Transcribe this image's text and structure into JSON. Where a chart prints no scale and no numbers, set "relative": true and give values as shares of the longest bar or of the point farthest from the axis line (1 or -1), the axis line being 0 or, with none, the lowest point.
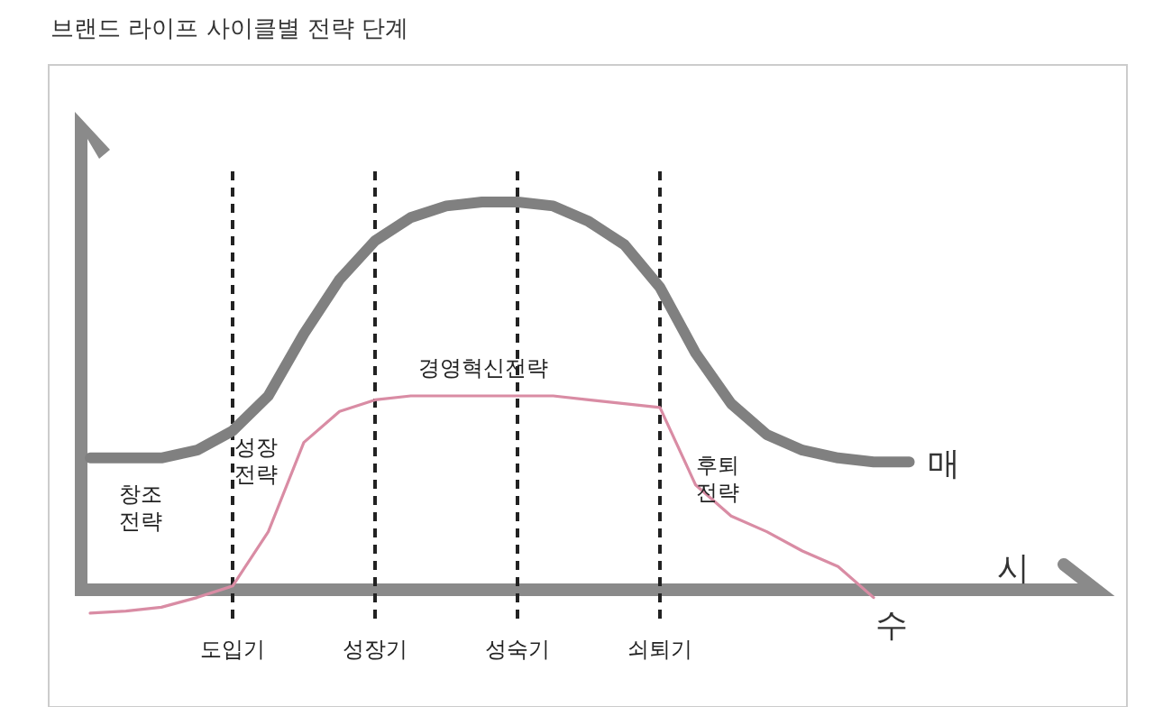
{
  "chart_data": {
    "type": "line",
    "relative": true,
    "title": "브랜드 라이프 사이클별 전략 단계",
    "xlabel": "시",
    "categories": [
      null,
      null,
      null,
      null,
      "도입기",
      null,
      null,
      null,
      "성장기",
      null,
      null,
      null,
      "성숙기",
      null,
      null,
      null,
      "쇠퇴기",
      null,
      null,
      null,
      null,
      null,
      null,
      null,
      null,
      null,
      null,
      null,
      null
    ],
    "ref_lines": [
      {
        "axis": "x",
        "value": "도입기",
        "color": "#222222",
        "line_style": "dashed"
      },
      {
        "axis": "x",
        "value": "성장기",
        "color": "#222222",
        "line_style": "dashed"
      },
      {
        "axis": "x",
        "value": "성숙기",
        "color": "#222222",
        "line_style": "dashed"
      },
      {
        "axis": "x",
        "value": "쇠퇴기",
        "color": "#222222",
        "line_style": "dashed"
      }
    ],
    "annotations": [
      "창조 전략",
      "성장 전략",
      "경영혁신전략",
      "후퇴 전략"
    ],
    "series": [
      {
        "name": "매",
        "color": "#808080",
        "values": [
          0.34,
          0.34,
          0.34,
          0.36,
          0.41,
          0.5,
          0.66,
          0.8,
          0.9,
          0.96,
          0.99,
          1.0,
          1.0,
          0.99,
          0.95,
          0.89,
          0.78,
          0.61,
          0.48,
          0.4,
          0.36,
          0.34,
          0.33,
          0.33,
          null,
          null,
          null,
          null,
          null
        ]
      },
      {
        "name": "수",
        "color": "#d98ca4",
        "values": [
          -0.06,
          -0.055,
          -0.045,
          -0.02,
          0.01,
          0.15,
          0.38,
          0.46,
          0.49,
          0.5,
          0.5,
          0.5,
          0.5,
          0.5,
          0.49,
          0.48,
          0.47,
          0.27,
          0.19,
          0.15,
          0.1,
          0.06,
          -0.02,
          null,
          null,
          null,
          null,
          null,
          null
        ]
      }
    ]
  }
}
